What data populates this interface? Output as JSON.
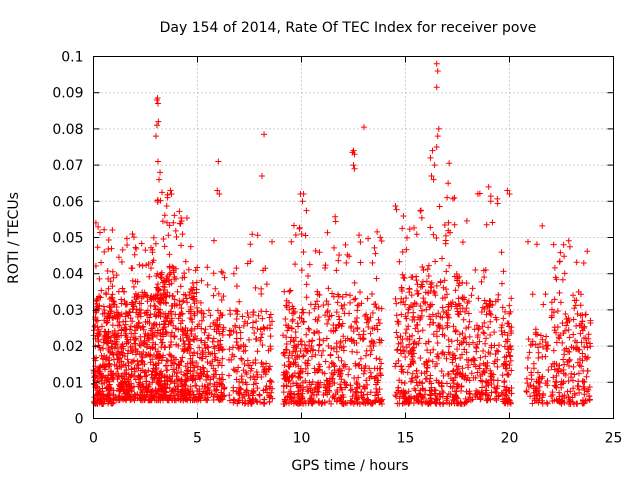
{
  "chart_data": {
    "type": "scatter",
    "title": "Day 154 of 2014, Rate Of TEC Index for receiver pove",
    "xlabel": "GPS time / hours",
    "ylabel": "ROTI / TECUs",
    "xlim": [
      0,
      25
    ],
    "ylim": [
      0,
      0.1
    ],
    "x_ticks": [
      0,
      5,
      10,
      15,
      20,
      25
    ],
    "y_ticks": [
      0,
      0.01,
      0.02,
      0.03,
      0.04,
      0.05,
      0.06,
      0.07,
      0.08,
      0.09,
      0.1
    ],
    "grid": true,
    "marker": "+",
    "color": "#ff0000",
    "clusters": [
      {
        "x_range": [
          0.0,
          1.0
        ],
        "y_typical": [
          0.004,
          0.035
        ],
        "y_peak": 0.055,
        "density": 260
      },
      {
        "x_range": [
          1.0,
          2.0
        ],
        "y_typical": [
          0.005,
          0.033
        ],
        "y_peak": 0.052,
        "density": 220
      },
      {
        "x_range": [
          2.0,
          3.0
        ],
        "y_typical": [
          0.005,
          0.035
        ],
        "y_peak": 0.05,
        "density": 220
      },
      {
        "x_range": [
          3.0,
          4.0
        ],
        "y_typical": [
          0.005,
          0.042
        ],
        "y_peak": 0.065,
        "density": 260
      },
      {
        "x_range": [
          4.0,
          5.0
        ],
        "y_typical": [
          0.005,
          0.038
        ],
        "y_peak": 0.058,
        "density": 200
      },
      {
        "x_range": [
          5.0,
          6.3
        ],
        "y_typical": [
          0.005,
          0.03
        ],
        "y_peak": 0.05,
        "density": 180
      },
      {
        "x_range": [
          6.5,
          8.6
        ],
        "y_typical": [
          0.004,
          0.03
        ],
        "y_peak": 0.052,
        "density": 200
      },
      {
        "x_range": [
          9.1,
          10.1
        ],
        "y_typical": [
          0.004,
          0.032
        ],
        "y_peak": 0.057,
        "density": 160
      },
      {
        "x_range": [
          10.1,
          12.0
        ],
        "y_typical": [
          0.004,
          0.035
        ],
        "y_peak": 0.058,
        "density": 220
      },
      {
        "x_range": [
          12.0,
          13.9
        ],
        "y_typical": [
          0.004,
          0.035
        ],
        "y_peak": 0.055,
        "density": 200
      },
      {
        "x_range": [
          14.5,
          16.2
        ],
        "y_typical": [
          0.004,
          0.04
        ],
        "y_peak": 0.062,
        "density": 240
      },
      {
        "x_range": [
          16.2,
          18.0
        ],
        "y_typical": [
          0.004,
          0.04
        ],
        "y_peak": 0.065,
        "density": 240
      },
      {
        "x_range": [
          18.0,
          19.5
        ],
        "y_typical": [
          0.005,
          0.035
        ],
        "y_peak": 0.063,
        "density": 160
      },
      {
        "x_range": [
          19.6,
          20.1
        ],
        "y_typical": [
          0.004,
          0.03
        ],
        "y_peak": 0.063,
        "density": 80
      },
      {
        "x_range": [
          20.8,
          21.9
        ],
        "y_typical": [
          0.004,
          0.025
        ],
        "y_peak": 0.055,
        "density": 80
      },
      {
        "x_range": [
          22.0,
          23.9
        ],
        "y_typical": [
          0.004,
          0.035
        ],
        "y_peak": 0.05,
        "density": 200
      }
    ],
    "outliers": [
      {
        "x": 3.05,
        "y": 0.088
      },
      {
        "x": 3.1,
        "y": 0.087
      },
      {
        "x": 3.08,
        "y": 0.0885
      },
      {
        "x": 3.12,
        "y": 0.082
      },
      {
        "x": 3.05,
        "y": 0.081
      },
      {
        "x": 3.0,
        "y": 0.078
      },
      {
        "x": 3.1,
        "y": 0.071
      },
      {
        "x": 3.2,
        "y": 0.068
      },
      {
        "x": 3.15,
        "y": 0.066
      },
      {
        "x": 3.7,
        "y": 0.063
      },
      {
        "x": 3.75,
        "y": 0.062
      },
      {
        "x": 6.0,
        "y": 0.071
      },
      {
        "x": 5.95,
        "y": 0.063
      },
      {
        "x": 6.05,
        "y": 0.062
      },
      {
        "x": 8.2,
        "y": 0.0785
      },
      {
        "x": 8.1,
        "y": 0.067
      },
      {
        "x": 9.95,
        "y": 0.062
      },
      {
        "x": 10.1,
        "y": 0.062
      },
      {
        "x": 10.05,
        "y": 0.06
      },
      {
        "x": 12.5,
        "y": 0.074
      },
      {
        "x": 12.55,
        "y": 0.073
      },
      {
        "x": 12.45,
        "y": 0.0735
      },
      {
        "x": 12.5,
        "y": 0.07
      },
      {
        "x": 12.55,
        "y": 0.069
      },
      {
        "x": 13.0,
        "y": 0.0805
      },
      {
        "x": 16.5,
        "y": 0.098
      },
      {
        "x": 16.55,
        "y": 0.096
      },
      {
        "x": 16.5,
        "y": 0.0915
      },
      {
        "x": 16.6,
        "y": 0.08
      },
      {
        "x": 16.55,
        "y": 0.078
      },
      {
        "x": 16.5,
        "y": 0.075
      },
      {
        "x": 16.3,
        "y": 0.074
      },
      {
        "x": 16.2,
        "y": 0.072
      },
      {
        "x": 16.4,
        "y": 0.07
      },
      {
        "x": 16.25,
        "y": 0.067
      },
      {
        "x": 16.35,
        "y": 0.066
      },
      {
        "x": 17.1,
        "y": 0.0705
      },
      {
        "x": 17.05,
        "y": 0.065
      },
      {
        "x": 17.0,
        "y": 0.061
      },
      {
        "x": 19.0,
        "y": 0.064
      },
      {
        "x": 19.1,
        "y": 0.06
      },
      {
        "x": 19.9,
        "y": 0.063
      },
      {
        "x": 20.0,
        "y": 0.062
      }
    ]
  }
}
